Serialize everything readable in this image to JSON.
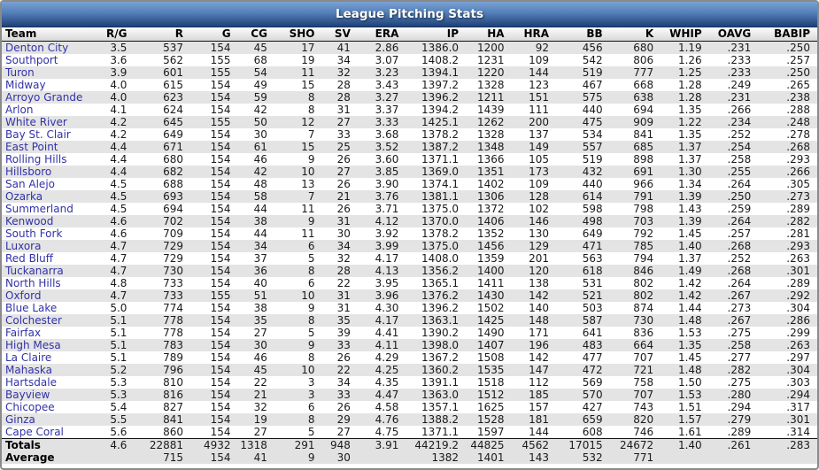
{
  "title": "League Pitching Stats",
  "colors": {
    "title_bar_top": "#7aa1d3",
    "title_bar_bottom": "#1f4077",
    "team_link": "#3232a8",
    "row_stripe": "#e4e4e4",
    "footer_bg": "#e2e2e2"
  },
  "table": {
    "columns": [
      "Team",
      "R/G",
      "R",
      "G",
      "CG",
      "SHO",
      "SV",
      "ERA",
      "IP",
      "HA",
      "HRA",
      "BB",
      "K",
      "WHIP",
      "OAVG",
      "BABIP"
    ],
    "rows": [
      [
        "Denton City",
        "3.5",
        "537",
        "154",
        "45",
        "17",
        "41",
        "2.86",
        "1386.0",
        "1200",
        "92",
        "456",
        "680",
        "1.19",
        ".231",
        ".250"
      ],
      [
        "Southport",
        "3.6",
        "562",
        "155",
        "68",
        "19",
        "34",
        "3.07",
        "1408.2",
        "1231",
        "109",
        "542",
        "806",
        "1.26",
        ".233",
        ".257"
      ],
      [
        "Turon",
        "3.9",
        "601",
        "155",
        "54",
        "11",
        "32",
        "3.23",
        "1394.1",
        "1220",
        "144",
        "519",
        "777",
        "1.25",
        ".233",
        ".250"
      ],
      [
        "Midway",
        "4.0",
        "615",
        "154",
        "49",
        "15",
        "28",
        "3.43",
        "1397.2",
        "1328",
        "123",
        "467",
        "668",
        "1.28",
        ".249",
        ".265"
      ],
      [
        "Arroyo Grande",
        "4.0",
        "623",
        "154",
        "59",
        "8",
        "28",
        "3.27",
        "1396.2",
        "1211",
        "151",
        "575",
        "638",
        "1.28",
        ".231",
        ".238"
      ],
      [
        "Arlon",
        "4.1",
        "624",
        "154",
        "42",
        "8",
        "31",
        "3.37",
        "1394.2",
        "1439",
        "111",
        "440",
        "694",
        "1.35",
        ".266",
        ".288"
      ],
      [
        "White River",
        "4.2",
        "645",
        "155",
        "50",
        "12",
        "27",
        "3.33",
        "1425.1",
        "1262",
        "200",
        "475",
        "909",
        "1.22",
        ".234",
        ".248"
      ],
      [
        "Bay St. Clair",
        "4.2",
        "649",
        "154",
        "30",
        "7",
        "33",
        "3.68",
        "1378.2",
        "1328",
        "137",
        "534",
        "841",
        "1.35",
        ".252",
        ".278"
      ],
      [
        "East Point",
        "4.4",
        "671",
        "154",
        "61",
        "15",
        "25",
        "3.52",
        "1387.2",
        "1348",
        "149",
        "557",
        "685",
        "1.37",
        ".254",
        ".268"
      ],
      [
        "Rolling Hills",
        "4.4",
        "680",
        "154",
        "46",
        "9",
        "26",
        "3.60",
        "1371.1",
        "1366",
        "105",
        "519",
        "898",
        "1.37",
        ".258",
        ".293"
      ],
      [
        "Hillsboro",
        "4.4",
        "682",
        "154",
        "42",
        "10",
        "27",
        "3.85",
        "1369.0",
        "1351",
        "173",
        "432",
        "691",
        "1.30",
        ".255",
        ".266"
      ],
      [
        "San Alejo",
        "4.5",
        "688",
        "154",
        "48",
        "13",
        "26",
        "3.90",
        "1374.1",
        "1402",
        "109",
        "440",
        "966",
        "1.34",
        ".264",
        ".305"
      ],
      [
        "Ozarka",
        "4.5",
        "693",
        "154",
        "58",
        "7",
        "21",
        "3.76",
        "1381.1",
        "1306",
        "128",
        "614",
        "791",
        "1.39",
        ".250",
        ".273"
      ],
      [
        "Summerland",
        "4.5",
        "694",
        "154",
        "44",
        "11",
        "26",
        "3.71",
        "1375.0",
        "1372",
        "102",
        "598",
        "798",
        "1.43",
        ".259",
        ".289"
      ],
      [
        "Kenwood",
        "4.6",
        "702",
        "154",
        "38",
        "9",
        "31",
        "4.12",
        "1370.0",
        "1406",
        "146",
        "498",
        "703",
        "1.39",
        ".264",
        ".282"
      ],
      [
        "South Fork",
        "4.6",
        "709",
        "154",
        "44",
        "11",
        "30",
        "3.92",
        "1378.2",
        "1352",
        "130",
        "649",
        "792",
        "1.45",
        ".257",
        ".281"
      ],
      [
        "Luxora",
        "4.7",
        "729",
        "154",
        "34",
        "6",
        "34",
        "3.99",
        "1375.0",
        "1456",
        "129",
        "471",
        "785",
        "1.40",
        ".268",
        ".293"
      ],
      [
        "Red Bluff",
        "4.7",
        "729",
        "154",
        "37",
        "5",
        "32",
        "4.17",
        "1408.0",
        "1359",
        "201",
        "563",
        "794",
        "1.37",
        ".252",
        ".263"
      ],
      [
        "Tuckanarra",
        "4.7",
        "730",
        "154",
        "36",
        "8",
        "28",
        "4.13",
        "1356.2",
        "1400",
        "120",
        "618",
        "846",
        "1.49",
        ".268",
        ".301"
      ],
      [
        "North Hills",
        "4.8",
        "733",
        "154",
        "40",
        "6",
        "22",
        "3.95",
        "1365.1",
        "1411",
        "138",
        "531",
        "802",
        "1.42",
        ".264",
        ".289"
      ],
      [
        "Oxford",
        "4.7",
        "733",
        "155",
        "51",
        "10",
        "31",
        "3.96",
        "1376.2",
        "1430",
        "142",
        "521",
        "802",
        "1.42",
        ".267",
        ".292"
      ],
      [
        "Blue Lake",
        "5.0",
        "774",
        "154",
        "38",
        "9",
        "31",
        "4.30",
        "1396.2",
        "1502",
        "140",
        "503",
        "874",
        "1.44",
        ".273",
        ".304"
      ],
      [
        "Colchester",
        "5.1",
        "778",
        "154",
        "35",
        "8",
        "35",
        "4.17",
        "1363.1",
        "1425",
        "148",
        "587",
        "730",
        "1.48",
        ".267",
        ".286"
      ],
      [
        "Fairfax",
        "5.1",
        "778",
        "154",
        "27",
        "5",
        "39",
        "4.41",
        "1390.2",
        "1490",
        "171",
        "641",
        "836",
        "1.53",
        ".275",
        ".299"
      ],
      [
        "High Mesa",
        "5.1",
        "783",
        "154",
        "30",
        "9",
        "33",
        "4.11",
        "1398.0",
        "1407",
        "196",
        "483",
        "664",
        "1.35",
        ".258",
        ".263"
      ],
      [
        "La Claire",
        "5.1",
        "789",
        "154",
        "46",
        "8",
        "26",
        "4.29",
        "1367.2",
        "1508",
        "142",
        "477",
        "707",
        "1.45",
        ".277",
        ".297"
      ],
      [
        "Mahaska",
        "5.2",
        "796",
        "154",
        "45",
        "10",
        "22",
        "4.25",
        "1360.2",
        "1535",
        "147",
        "472",
        "721",
        "1.48",
        ".282",
        ".304"
      ],
      [
        "Hartsdale",
        "5.3",
        "810",
        "154",
        "22",
        "3",
        "34",
        "4.35",
        "1391.1",
        "1518",
        "112",
        "569",
        "758",
        "1.50",
        ".275",
        ".303"
      ],
      [
        "Bayview",
        "5.3",
        "816",
        "154",
        "21",
        "3",
        "33",
        "4.47",
        "1363.0",
        "1512",
        "185",
        "570",
        "707",
        "1.53",
        ".280",
        ".294"
      ],
      [
        "Chicopee",
        "5.4",
        "827",
        "154",
        "32",
        "6",
        "26",
        "4.58",
        "1357.1",
        "1625",
        "157",
        "427",
        "743",
        "1.51",
        ".294",
        ".317"
      ],
      [
        "Ginza",
        "5.5",
        "841",
        "154",
        "19",
        "8",
        "29",
        "4.76",
        "1388.2",
        "1528",
        "181",
        "659",
        "820",
        "1.57",
        ".279",
        ".301"
      ],
      [
        "Cape Coral",
        "5.6",
        "860",
        "154",
        "27",
        "5",
        "27",
        "4.75",
        "1371.1",
        "1597",
        "144",
        "608",
        "746",
        "1.61",
        ".289",
        ".314"
      ]
    ],
    "totals": [
      "Totals",
      "4.6",
      "22881",
      "4932",
      "1318",
      "291",
      "948",
      "3.91",
      "44219.2",
      "44825",
      "4562",
      "17015",
      "24672",
      "1.40",
      ".261",
      ".283"
    ],
    "average": [
      "Average",
      "",
      "715",
      "154",
      "41",
      "9",
      "30",
      "",
      "1382",
      "1401",
      "143",
      "532",
      "771",
      "",
      "",
      ""
    ]
  }
}
